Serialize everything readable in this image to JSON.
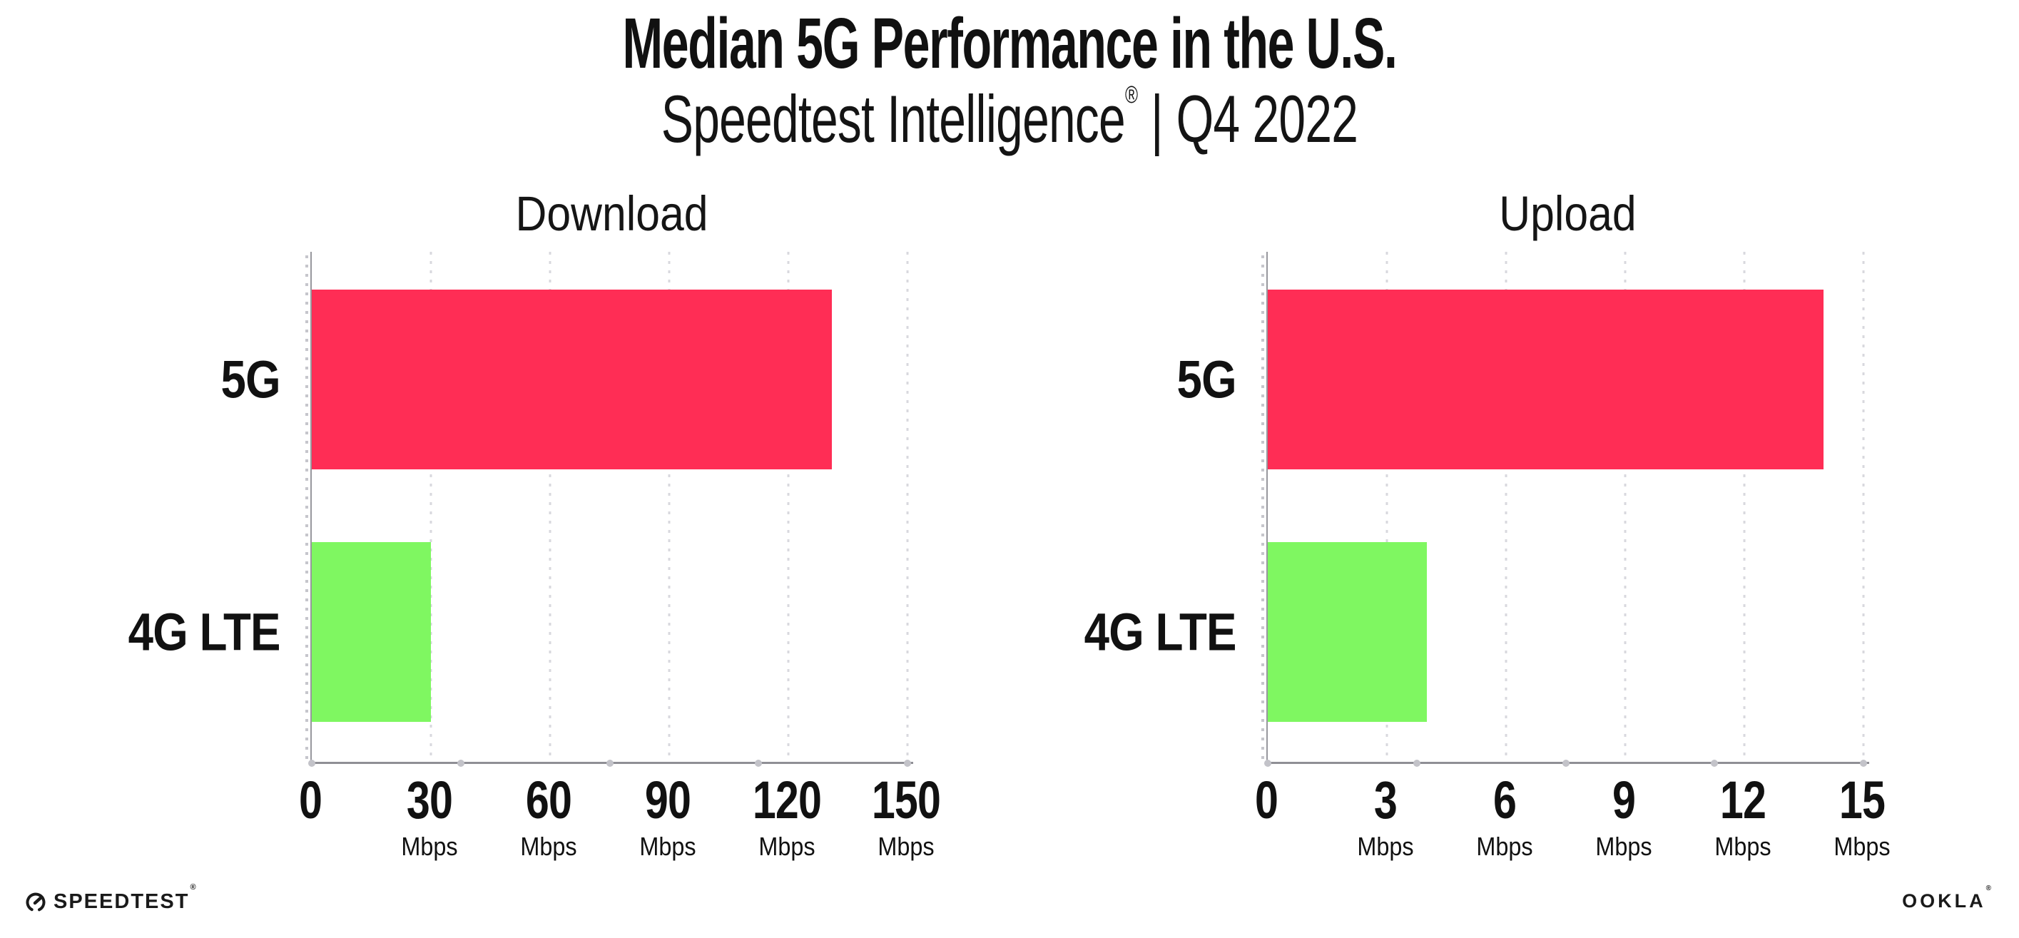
{
  "header": {
    "title": "Median 5G Performance in the U.S.",
    "subtitle": {
      "brand": "Speedtest Intelligence",
      "registered": "®",
      "separator": "|",
      "period": "Q4 2022"
    }
  },
  "chart_data": [
    {
      "type": "bar",
      "orientation": "horizontal",
      "title": "Download",
      "categories": [
        "5G",
        "4G LTE"
      ],
      "values": [
        131,
        30
      ],
      "unit": "Mbps",
      "xlabel": "",
      "ylabel": "",
      "xlim": [
        0,
        150
      ],
      "xticks": [
        0,
        30,
        60,
        90,
        120,
        150
      ],
      "bar_colors": [
        "#FF2D55",
        "#7FF761"
      ],
      "grid": "dotted vertical gridlines at each labeled tick",
      "legend": "none"
    },
    {
      "type": "bar",
      "orientation": "horizontal",
      "title": "Upload",
      "categories": [
        "5G",
        "4G LTE"
      ],
      "values": [
        14,
        4
      ],
      "unit": "Mbps",
      "xlabel": "",
      "ylabel": "",
      "xlim": [
        0,
        15
      ],
      "xticks": [
        0,
        3,
        6,
        9,
        12,
        15
      ],
      "bar_colors": [
        "#FF2D55",
        "#7FF761"
      ],
      "grid": "dotted vertical gridlines at each labeled tick",
      "legend": "none"
    }
  ],
  "footer": {
    "speedtest_wordmark": "SPEEDTEST",
    "speedtest_mark": "®",
    "ookla_wordmark": "OOKLA",
    "ookla_mark": "®"
  },
  "colors": {
    "bar_5g": "#FF2D55",
    "bar_4g_lte": "#7FF761",
    "axis": "#97979D",
    "gridline_dots": "#D8D8DE",
    "axis_tick_dots": "#C3C3C9",
    "text": "#111111",
    "background": "#FFFFFF"
  }
}
